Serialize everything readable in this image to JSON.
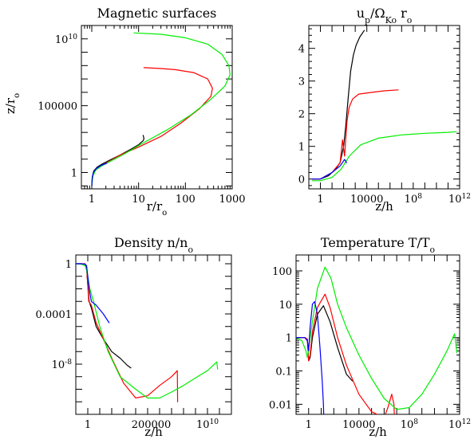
{
  "chart_data": [
    {
      "type": "line",
      "title": "Magnetic surfaces",
      "xlabel": "r/r_o",
      "ylabel": "z/r_o",
      "xscale": "log",
      "yscale": "log",
      "xlim": [
        0.6,
        1000
      ],
      "ylim": [
        0.06,
        100000000000.0
      ],
      "xticks": [
        {
          "v": 1,
          "label": "1"
        },
        {
          "v": 10,
          "label": "10"
        },
        {
          "v": 100,
          "label": "100"
        },
        {
          "v": 1000,
          "label": "1000"
        }
      ],
      "yticks": [
        {
          "v": 1,
          "label": "1"
        },
        {
          "v": 100000,
          "label": "100000"
        },
        {
          "v": 10000000000.0,
          "label": "10",
          "sup": "10"
        }
      ],
      "series": [
        {
          "color": "#000000",
          "x": [
            1,
            1.03,
            1.1,
            1.3,
            1.7,
            2.5,
            4,
            6.5,
            10,
            12.6,
            13,
            12.5
          ],
          "y": [
            0.1,
            0.5,
            1.3,
            2.5,
            4.5,
            9,
            20,
            50,
            120,
            250,
            350,
            600
          ]
        },
        {
          "color": "#ff0000",
          "x": [
            1,
            1.05,
            1.15,
            1.5,
            2.2,
            4,
            10,
            30,
            80,
            200,
            350,
            380,
            300,
            150,
            60,
            30,
            13
          ],
          "y": [
            0.1,
            0.5,
            1.3,
            3,
            6,
            20,
            80,
            500,
            5000,
            60000,
            500000.0,
            2000000.0,
            10000000.0,
            30000000.0,
            50000000.0,
            60000000.0,
            70000000.0
          ]
        },
        {
          "color": "#00ee00",
          "x": [
            1,
            1.05,
            1.2,
            1.6,
            2.5,
            5,
            12,
            40,
            130,
            350,
            700,
            900,
            850,
            600,
            300,
            100,
            30,
            8
          ],
          "y": [
            0.1,
            0.5,
            1.5,
            3,
            7,
            25,
            150,
            1500,
            20000,
            300000.0,
            3000000.0,
            20000000.0,
            100000000.0,
            700000000.0,
            4000000000.0,
            12000000000.0,
            22000000000.0,
            28000000000.0
          ]
        },
        {
          "color": "#0000ff",
          "x": [
            1,
            1.02,
            1.08,
            1.25,
            1.6,
            2.1
          ],
          "y": [
            0.1,
            0.4,
            1,
            2,
            3.5,
            5
          ]
        }
      ]
    },
    {
      "type": "line",
      "title": "u_p/Ω_Ko r_o",
      "xlabel": "z/h",
      "ylabel": "",
      "xscale": "log",
      "yscale": "linear",
      "xlim": [
        0.1,
        1000000000000.0
      ],
      "ylim": [
        -0.3,
        4.7
      ],
      "xticks": [
        {
          "v": 1,
          "label": "1"
        },
        {
          "v": 10000,
          "label": "10000"
        },
        {
          "v": 100000000.0,
          "label": "10",
          "sup": "8"
        },
        {
          "v": 1000000000000.0,
          "label": "10",
          "sup": "12"
        }
      ],
      "yticks": [
        {
          "v": 0,
          "label": "0"
        },
        {
          "v": 1,
          "label": "1"
        },
        {
          "v": 2,
          "label": "2"
        },
        {
          "v": 3,
          "label": "3"
        },
        {
          "v": 4,
          "label": "4"
        }
      ],
      "series": [
        {
          "color": "#000000",
          "x": [
            0.2,
            1,
            5,
            20,
            50,
            100,
            150,
            250,
            400,
            700,
            1200,
            2500,
            6000
          ],
          "y": [
            0,
            0,
            0.1,
            0.3,
            0.5,
            1.0,
            1.6,
            2.5,
            3.3,
            3.8,
            4.1,
            4.35,
            4.55
          ]
        },
        {
          "color": "#ff0000",
          "x": [
            0.2,
            1,
            10,
            50,
            80,
            120,
            150,
            200,
            300,
            600,
            2000,
            20000,
            300000.0,
            5000000.0
          ],
          "y": [
            0,
            0,
            0.2,
            0.5,
            1.2,
            0.7,
            1.2,
            1.8,
            2.2,
            2.45,
            2.6,
            2.65,
            2.7,
            2.73
          ]
        },
        {
          "color": "#00ee00",
          "x": [
            0.2,
            1,
            10,
            60,
            300,
            3000,
            100000.0,
            10000000.0,
            1000000000.0,
            100000000000.0,
            500000000000.0
          ],
          "y": [
            -0.05,
            -0.05,
            0.05,
            0.3,
            0.7,
            1.05,
            1.25,
            1.35,
            1.4,
            1.43,
            1.45
          ]
        },
        {
          "color": "#0000ff",
          "x": [
            0.2,
            1,
            10,
            50,
            120,
            180
          ],
          "y": [
            0,
            0,
            0.2,
            0.4,
            0.6,
            0.5
          ]
        }
      ]
    },
    {
      "type": "line",
      "title": "Density n/n_o",
      "xlabel": "z/h",
      "ylabel": "",
      "xscale": "log",
      "yscale": "log",
      "xlim": [
        0.1,
        1000000000000.0
      ],
      "ylim": [
        1e-12,
        5
      ],
      "xticks": [
        {
          "v": 1,
          "label": "1"
        },
        {
          "v": 200000,
          "label": "200000"
        },
        {
          "v": 10000000000.0,
          "label": "10",
          "sup": "10"
        }
      ],
      "yticks": [
        {
          "v": 1e-08,
          "label": "10",
          "sup": "-8"
        },
        {
          "v": 0.0001,
          "label": "0.0001"
        },
        {
          "v": 1,
          "label": "1"
        }
      ],
      "series": [
        {
          "color": "#000000",
          "x": [
            0.1,
            0.3,
            0.6,
            0.8,
            1,
            1.3,
            2,
            5,
            20,
            100,
            500,
            2000,
            4000
          ],
          "y": [
            1,
            1,
            0.9,
            0.5,
            0.02,
            0.001,
            0.0003,
            1e-05,
            1e-06,
            1e-07,
            3e-08,
            8e-09,
            5e-09
          ]
        },
        {
          "color": "#ff0000",
          "x": [
            0.1,
            0.3,
            0.6,
            0.8,
            1,
            1.2,
            2,
            5,
            20,
            100,
            1000,
            10000,
            100000.0,
            1000000.0,
            10000000.0,
            30000000.0,
            32000000.0
          ],
          "y": [
            1,
            1,
            1,
            0.6,
            0.02,
            0.001,
            0.0005,
            2e-05,
            1e-06,
            3e-08,
            3e-10,
            2e-11,
            3e-11,
            2e-10,
            1e-09,
            3e-09,
            1e-11
          ]
        },
        {
          "color": "#00ee00",
          "x": [
            0.1,
            0.3,
            0.6,
            0.8,
            1,
            1.5,
            3,
            10,
            50,
            500,
            10000.0,
            100000.0,
            1000000.0,
            10000000.0,
            100000000.0,
            1000000000.0,
            10000000000.0,
            60000000000.0,
            70000000000.0
          ],
          "y": [
            1,
            0.9,
            0.7,
            0.3,
            0.1,
            0.01,
            0.001,
            1e-05,
            1e-07,
            1e-09,
            1e-10,
            2e-11,
            2e-11,
            6e-11,
            2e-10,
            8e-10,
            3e-09,
            1.5e-08,
            4e-09
          ]
        },
        {
          "color": "#0000ff",
          "x": [
            0.1,
            0.3,
            0.6,
            0.8,
            1,
            1.3,
            2,
            5,
            20,
            60
          ],
          "y": [
            1,
            1,
            0.9,
            0.7,
            0.1,
            0.01,
            0.001,
            0.0005,
            0.0001,
            2e-05
          ]
        }
      ]
    },
    {
      "type": "line",
      "title": "Temperature T/T_o",
      "xlabel": "z/h",
      "ylabel": "",
      "xscale": "log",
      "yscale": "log",
      "xlim": [
        0.1,
        1000000000000.0
      ],
      "ylim": [
        0.005,
        300
      ],
      "xticks": [
        {
          "v": 1,
          "label": "1"
        },
        {
          "v": 10000,
          "label": "10000"
        },
        {
          "v": 100000000.0,
          "label": "10",
          "sup": "8"
        },
        {
          "v": 1000000000000.0,
          "label": "10",
          "sup": "12"
        }
      ],
      "yticks": [
        {
          "v": 0.01,
          "label": "0.01"
        },
        {
          "v": 0.1,
          "label": "0.1"
        },
        {
          "v": 1,
          "label": "1"
        },
        {
          "v": 10,
          "label": "10"
        },
        {
          "v": 100,
          "label": "100"
        }
      ],
      "series": [
        {
          "color": "#000000",
          "x": [
            0.1,
            0.5,
            0.8,
            1,
            1.3,
            2,
            5,
            15,
            50,
            200,
            1000,
            3000
          ],
          "y": [
            1,
            1,
            0.9,
            0.2,
            0.25,
            1,
            5,
            9,
            3,
            0.5,
            0.08,
            0.05
          ]
        },
        {
          "color": "#ff0000",
          "x": [
            0.1,
            0.5,
            0.8,
            1,
            1.3,
            2,
            5,
            20,
            50,
            200,
            1000,
            10000.0,
            100000.0,
            1000000.0,
            2000000.0,
            4000000.0,
            6000000.0,
            7000000.0
          ],
          "y": [
            1,
            1,
            0.9,
            0.2,
            0.3,
            1.5,
            8,
            20,
            8,
            1,
            0.15,
            0.02,
            0.006,
            0.004,
            0.008,
            0.02,
            0.01,
            0.002
          ]
        },
        {
          "color": "#00ee00",
          "x": [
            0.1,
            0.3,
            0.6,
            0.8,
            1,
            2,
            5,
            20,
            60,
            200,
            1000,
            10000.0,
            100000.0,
            1000000.0,
            10000000.0,
            100000000.0,
            1000000000.0,
            10000000000.0,
            100000000000.0,
            400000000000.0,
            600000000000.0
          ],
          "y": [
            1,
            0.8,
            0.4,
            0.25,
            0.5,
            3,
            30,
            130,
            60,
            10,
            2,
            0.3,
            0.06,
            0.015,
            0.007,
            0.008,
            0.02,
            0.08,
            0.4,
            1.3,
            0.35
          ]
        },
        {
          "color": "#0000ff",
          "x": [
            0.1,
            0.5,
            0.8,
            1,
            1.3,
            2,
            3,
            5,
            8,
            12,
            15,
            16
          ],
          "y": [
            1,
            1,
            0.8,
            0.4,
            2,
            10,
            12,
            5,
            0.5,
            0.05,
            0.01,
            0.004
          ]
        }
      ]
    }
  ]
}
